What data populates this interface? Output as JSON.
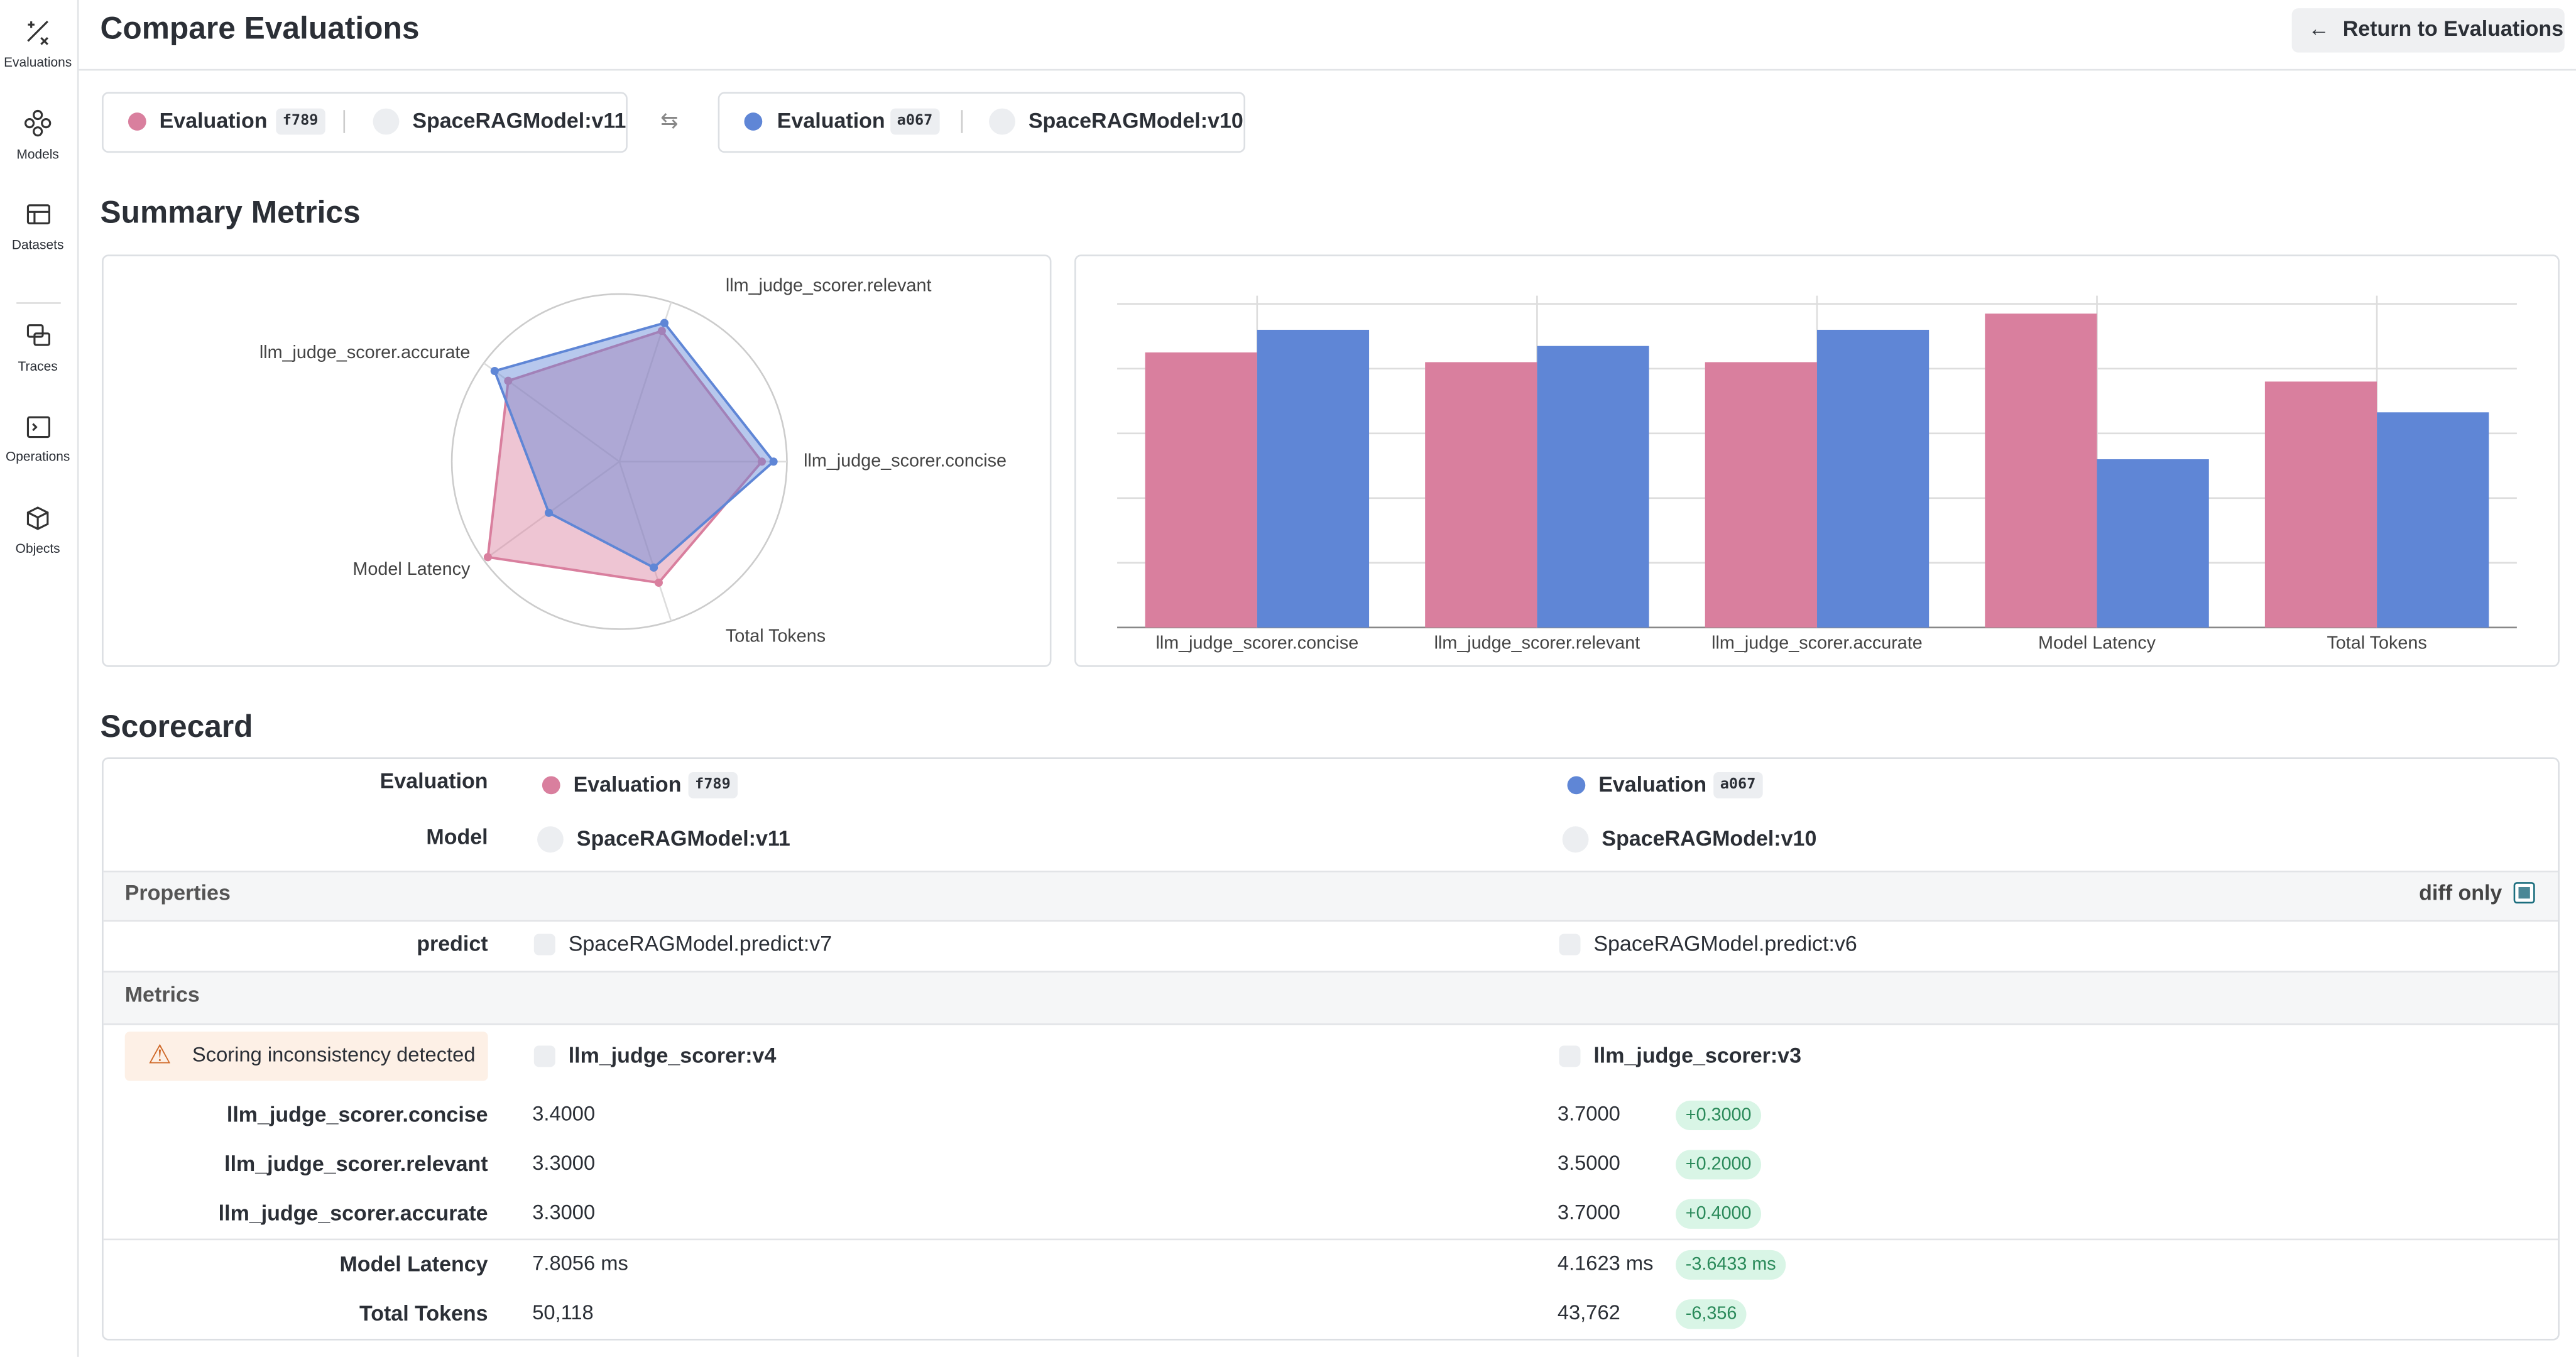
{
  "sidebar": {
    "items": [
      "Evaluations",
      "Models",
      "Datasets",
      "Traces",
      "Operations",
      "Objects"
    ]
  },
  "header": {
    "title": "Compare Evaluations",
    "return_button": "Return to Evaluations"
  },
  "selectors": [
    {
      "label": "Evaluation",
      "id": "f789",
      "model": "SpaceRAGModel:v11",
      "color": "#d97f9e"
    },
    {
      "label": "Evaluation",
      "id": "a067",
      "model": "SpaceRAGModel:v10",
      "color": "#5f86d6"
    }
  ],
  "summary": {
    "title": "Summary Metrics"
  },
  "chart_data": [
    {
      "type": "radar",
      "categories": [
        "llm_judge_scorer.concise",
        "llm_judge_scorer.relevant",
        "llm_judge_scorer.accurate",
        "Model Latency",
        "Total Tokens"
      ],
      "series": [
        {
          "color": "#d97f9e",
          "values": [
            0.85,
            0.82,
            0.82,
            0.97,
            0.76
          ]
        },
        {
          "color": "#5f86d6",
          "values": [
            0.92,
            0.87,
            0.92,
            0.52,
            0.665
          ]
        }
      ],
      "rlim": [
        0,
        1
      ]
    },
    {
      "type": "bar",
      "categories": [
        "llm_judge_scorer.concise",
        "llm_judge_scorer.relevant",
        "llm_judge_scorer.accurate",
        "Model Latency",
        "Total Tokens"
      ],
      "series": [
        {
          "color": "#d97f9e",
          "values": [
            0.85,
            0.82,
            0.82,
            0.97,
            0.76
          ]
        },
        {
          "color": "#5f86d6",
          "values": [
            0.92,
            0.87,
            0.92,
            0.52,
            0.665
          ]
        }
      ],
      "ylim": [
        0,
        1
      ],
      "yticks": [
        0,
        0.2,
        0.4,
        0.6,
        0.8,
        1
      ],
      "grid": true
    }
  ],
  "scorecard": {
    "title": "Scorecard",
    "evaluation_label": "Evaluation",
    "model_label": "Model",
    "properties_label": "Properties",
    "diff_only": "diff only",
    "predict_label": "predict",
    "predict": [
      "SpaceRAGModel.predict:v7",
      "SpaceRAGModel.predict:v6"
    ],
    "metrics_label": "Metrics",
    "warning": "Scoring inconsistency detected",
    "scorers": [
      "llm_judge_scorer:v4",
      "llm_judge_scorer:v3"
    ],
    "rows": [
      {
        "name": "llm_judge_scorer.concise",
        "values": [
          "3.4000",
          "3.7000"
        ],
        "diff": "+0.3000"
      },
      {
        "name": "llm_judge_scorer.relevant",
        "values": [
          "3.3000",
          "3.5000"
        ],
        "diff": "+0.2000"
      },
      {
        "name": "llm_judge_scorer.accurate",
        "values": [
          "3.3000",
          "3.7000"
        ],
        "diff": "+0.4000"
      },
      {
        "name": "Model Latency",
        "values": [
          "7.8056 ms",
          "4.1623 ms"
        ],
        "diff": "-3.6433 ms"
      },
      {
        "name": "Total Tokens",
        "values": [
          "50,118",
          "43,762"
        ],
        "diff": "-6,356"
      }
    ]
  }
}
